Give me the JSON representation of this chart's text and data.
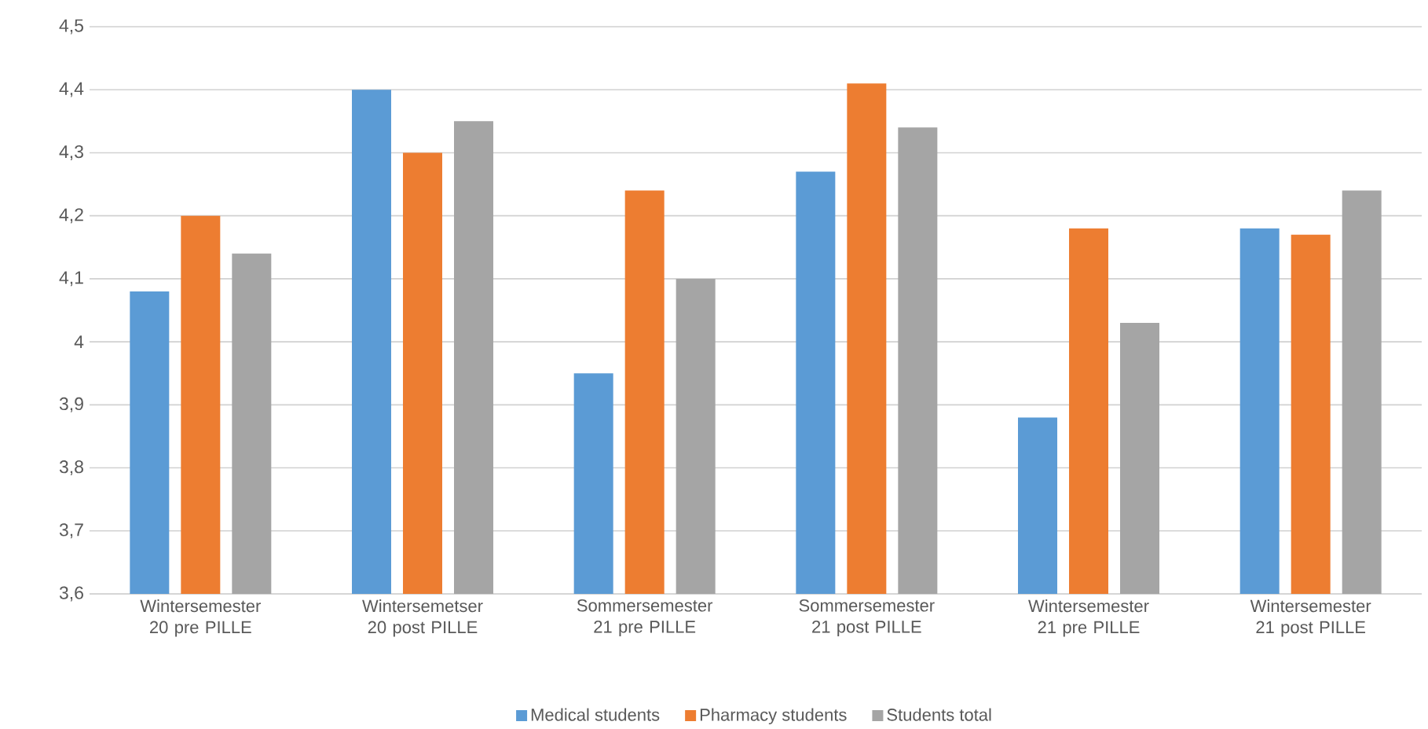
{
  "chart_data": {
    "type": "bar",
    "categories": [
      "Wintersemester 20 pre PILLE",
      "Wintersemetser 20 post PILLE",
      "Sommersemester 21 pre PILLE",
      "Sommersemester 21 post PILLE",
      "Wintersemester 21 pre PILLE",
      "Wintersemester 21 post PILLE"
    ],
    "series": [
      {
        "name": "Medical students",
        "color": "#5b9bd5",
        "values": [
          4.08,
          4.4,
          3.95,
          4.27,
          3.88,
          4.18
        ]
      },
      {
        "name": "Pharmacy students",
        "color": "#ed7d31",
        "values": [
          4.2,
          4.3,
          4.24,
          4.41,
          4.18,
          4.17
        ]
      },
      {
        "name": "Students total",
        "color": "#a5a5a5",
        "values": [
          4.14,
          4.35,
          4.1,
          4.34,
          4.03,
          4.24
        ]
      }
    ],
    "ylim": [
      3.6,
      4.5
    ],
    "yticks": [
      {
        "value": 3.6,
        "label": "3,6"
      },
      {
        "value": 3.7,
        "label": "3,7"
      },
      {
        "value": 3.8,
        "label": "3,8"
      },
      {
        "value": 3.9,
        "label": "3,9"
      },
      {
        "value": 4,
        "label": "4"
      },
      {
        "value": 4.1,
        "label": "4,1"
      },
      {
        "value": 4.2,
        "label": "4,2"
      },
      {
        "value": 4.3,
        "label": "4,3"
      },
      {
        "value": 4.4,
        "label": "4,4"
      },
      {
        "value": 4.5,
        "label": "4,5"
      }
    ],
    "grid": "y",
    "legend": "bottom"
  }
}
